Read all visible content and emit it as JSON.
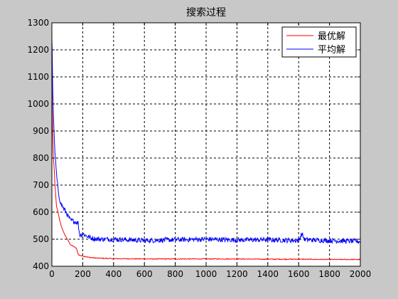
{
  "chart_data": {
    "type": "line",
    "title": "搜索过程",
    "xlabel": "",
    "ylabel": "",
    "xlim": [
      0,
      2000
    ],
    "ylim": [
      400,
      1300
    ],
    "xticks": [
      0,
      200,
      400,
      600,
      800,
      1000,
      1200,
      1400,
      1600,
      1800,
      2000
    ],
    "yticks": [
      400,
      500,
      600,
      700,
      800,
      900,
      1000,
      1100,
      1200,
      1300
    ],
    "grid": true,
    "legend_position": "top-right",
    "series": [
      {
        "name": "最优解",
        "color": "#ff0000",
        "x": [
          0,
          2,
          5,
          10,
          15,
          20,
          30,
          40,
          50,
          60,
          80,
          100,
          120,
          150,
          160,
          170,
          180,
          200,
          250,
          300,
          400,
          600,
          800,
          1000,
          1200,
          1400,
          1600,
          1800,
          2000
        ],
        "y": [
          1180,
          1000,
          900,
          800,
          760,
          700,
          620,
          600,
          570,
          550,
          520,
          500,
          480,
          470,
          465,
          445,
          440,
          438,
          432,
          430,
          428,
          427,
          427,
          427,
          427,
          426,
          426,
          425,
          425
        ]
      },
      {
        "name": "平均解",
        "color": "#0000ff",
        "x": [
          0,
          2,
          5,
          10,
          15,
          20,
          30,
          40,
          50,
          60,
          70,
          80,
          100,
          120,
          150,
          170,
          180,
          200,
          250,
          300,
          400,
          600,
          800,
          1000,
          1200,
          1400,
          1600,
          1620,
          1640,
          1800,
          2000
        ],
        "y": [
          1240,
          1200,
          1070,
          960,
          880,
          820,
          740,
          680,
          650,
          630,
          620,
          610,
          590,
          570,
          565,
          560,
          515,
          520,
          505,
          500,
          500,
          495,
          498,
          500,
          497,
          498,
          495,
          520,
          498,
          495,
          492
        ]
      }
    ]
  }
}
